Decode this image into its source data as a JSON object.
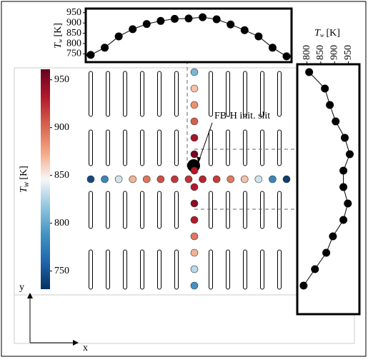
{
  "chart_data": [
    {
      "type": "line",
      "ylabel": {
        "base": "T",
        "sub": "w",
        "unit": "[K]"
      },
      "categories": [
        null,
        null,
        null,
        null,
        null,
        null,
        null,
        null,
        null,
        null,
        null,
        null,
        null,
        null,
        null
      ],
      "values": [
        745,
        780,
        835,
        870,
        895,
        910,
        920,
        922,
        928,
        918,
        893,
        865,
        835,
        780,
        738
      ],
      "ylim": [
        710,
        970
      ],
      "yticks": [
        750,
        800,
        850,
        900,
        950
      ],
      "color": "#000000"
    },
    {
      "type": "hline",
      "xlabel": {
        "base": "T",
        "sub": "w",
        "unit": "[K]"
      },
      "categories": [
        null,
        null,
        null,
        null,
        null,
        null,
        null,
        null,
        null,
        null,
        null,
        null,
        null,
        null
      ],
      "values": [
        808,
        865,
        883,
        904,
        937,
        955,
        932,
        932,
        948,
        932,
        894,
        870,
        829,
        788
      ],
      "xlim": [
        765,
        990
      ],
      "xticks": [
        800,
        850,
        900,
        950
      ],
      "color": "#000000"
    },
    {
      "type": "scatter",
      "annotation": "FB-H init. slit",
      "xaxis": "x",
      "yaxis": "y",
      "colorbar": {
        "label": {
          "base": "T",
          "sub": "w",
          "unit": "[K]"
        },
        "clim": [
          731,
          961
        ],
        "ticks": [
          750,
          800,
          850,
          900,
          950
        ],
        "colormap": [
          "#053061",
          "#2166ac",
          "#4393c3",
          "#92c5de",
          "#f7f7f7",
          "#f4a582",
          "#d6604d",
          "#b2182b",
          "#67001f"
        ]
      }
    }
  ]
}
